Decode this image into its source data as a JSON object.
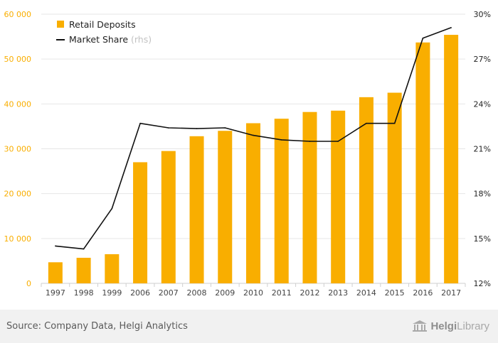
{
  "chart_data": {
    "type": "bar",
    "categories": [
      "1997",
      "1998",
      "1999",
      "2006",
      "2007",
      "2008",
      "2009",
      "2010",
      "2011",
      "2012",
      "2013",
      "2014",
      "2015",
      "2016",
      "2017"
    ],
    "series": [
      {
        "name": "Retail Deposits",
        "type": "bar",
        "axis": "left",
        "color": "#f9ae00",
        "values": [
          4700,
          5700,
          6500,
          27000,
          29500,
          32800,
          34000,
          35700,
          36700,
          38200,
          38500,
          41500,
          42500,
          53700,
          55400
        ]
      },
      {
        "name": "Market Share",
        "name_suffix": "(rhs)",
        "type": "line",
        "axis": "right",
        "color": "#111111",
        "values": [
          14.5,
          14.3,
          17.0,
          22.7,
          22.4,
          22.35,
          22.4,
          21.9,
          21.6,
          21.5,
          21.5,
          22.7,
          22.7,
          28.4,
          29.1
        ]
      }
    ],
    "y_left": {
      "min": 0,
      "max": 60000,
      "ticks": [
        0,
        10000,
        20000,
        30000,
        40000,
        50000,
        60000
      ],
      "tick_labels": [
        "0",
        "10 000",
        "20 000",
        "30 000",
        "40 000",
        "50 000",
        "60 000"
      ],
      "color": "#f9ae00"
    },
    "y_right": {
      "min": 12,
      "max": 30,
      "ticks": [
        12,
        15,
        18,
        21,
        24,
        27,
        30
      ],
      "tick_labels": [
        "12%",
        "15%",
        "18%",
        "21%",
        "24%",
        "27%",
        "30%"
      ]
    },
    "legend": "top-left",
    "grid": true
  },
  "footer": {
    "source": "Source: Company Data, Helgi Analytics",
    "brand_part1": "Helgi",
    "brand_part2": "Library"
  }
}
